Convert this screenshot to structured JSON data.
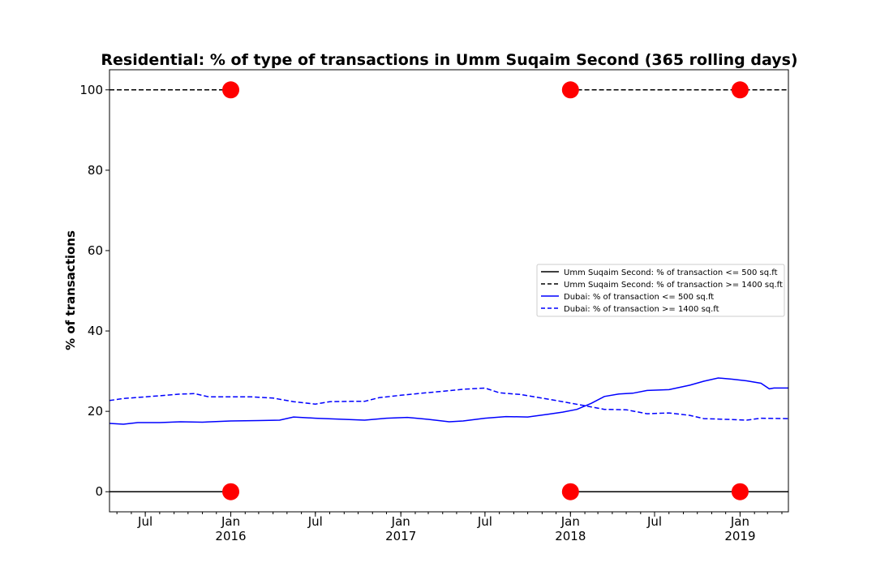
{
  "chart_data": {
    "type": "line",
    "title": "Residential: % of type of transactions in Umm Suqaim Second (365 rolling days)",
    "xlabel": "",
    "ylabel": "% of transactions",
    "xlim": [
      "2015-04-15",
      "2019-04-15"
    ],
    "ylim": [
      -5,
      105
    ],
    "yticks": [
      0,
      20,
      40,
      60,
      80,
      100
    ],
    "xticks": [
      {
        "date": "2015-07-01",
        "label": "Jul",
        "sublabel": ""
      },
      {
        "date": "2016-01-01",
        "label": "Jan",
        "sublabel": "2016"
      },
      {
        "date": "2016-07-01",
        "label": "Jul",
        "sublabel": ""
      },
      {
        "date": "2017-01-01",
        "label": "Jan",
        "sublabel": "2017"
      },
      {
        "date": "2017-07-01",
        "label": "Jul",
        "sublabel": ""
      },
      {
        "date": "2018-01-01",
        "label": "Jan",
        "sublabel": "2018"
      },
      {
        "date": "2018-07-01",
        "label": "Jul",
        "sublabel": ""
      },
      {
        "date": "2019-01-01",
        "label": "Jan",
        "sublabel": "2019"
      }
    ],
    "legend_position": "center-right",
    "grid": false,
    "series": [
      {
        "name": "Umm Suqaim Second: % of transaction <= 500 sq.ft",
        "color": "#000000",
        "dashed": false,
        "segments": [
          [
            [
              "2015-04-15",
              0
            ],
            [
              "2016-01-01",
              0
            ]
          ],
          [
            [
              "2017-12-15",
              0
            ],
            [
              "2019-04-15",
              0
            ]
          ]
        ]
      },
      {
        "name": "Umm Suqaim Second: % of transaction >= 1400 sq.ft",
        "color": "#000000",
        "dashed": true,
        "segments": [
          [
            [
              "2015-04-15",
              100
            ],
            [
              "2016-01-01",
              100
            ]
          ],
          [
            [
              "2017-12-15",
              100
            ],
            [
              "2019-04-15",
              100
            ]
          ]
        ]
      },
      {
        "name": "Dubai: % of transaction <= 500 sq.ft",
        "color": "#0000ff",
        "dashed": false,
        "points": [
          [
            "2015-04-15",
            17.0
          ],
          [
            "2015-05-15",
            16.8
          ],
          [
            "2015-06-15",
            17.2
          ],
          [
            "2015-08-01",
            17.2
          ],
          [
            "2015-09-15",
            17.4
          ],
          [
            "2015-11-01",
            17.3
          ],
          [
            "2016-01-01",
            17.6
          ],
          [
            "2016-03-01",
            17.7
          ],
          [
            "2016-04-15",
            17.8
          ],
          [
            "2016-05-15",
            18.6
          ],
          [
            "2016-07-01",
            18.3
          ],
          [
            "2016-09-01",
            18.0
          ],
          [
            "2016-10-15",
            17.8
          ],
          [
            "2016-12-01",
            18.3
          ],
          [
            "2017-01-15",
            18.5
          ],
          [
            "2017-03-01",
            18.0
          ],
          [
            "2017-04-15",
            17.4
          ],
          [
            "2017-05-15",
            17.6
          ],
          [
            "2017-07-01",
            18.3
          ],
          [
            "2017-08-15",
            18.7
          ],
          [
            "2017-10-01",
            18.6
          ],
          [
            "2017-11-15",
            19.3
          ],
          [
            "2017-12-15",
            19.8
          ],
          [
            "2018-01-15",
            20.5
          ],
          [
            "2018-02-15",
            22.0
          ],
          [
            "2018-03-15",
            23.7
          ],
          [
            "2018-04-15",
            24.3
          ],
          [
            "2018-05-15",
            24.5
          ],
          [
            "2018-06-15",
            25.2
          ],
          [
            "2018-08-01",
            25.4
          ],
          [
            "2018-09-15",
            26.5
          ],
          [
            "2018-10-15",
            27.5
          ],
          [
            "2018-11-15",
            28.3
          ],
          [
            "2018-12-15",
            28.0
          ],
          [
            "2019-01-15",
            27.6
          ],
          [
            "2019-02-15",
            27.0
          ],
          [
            "2019-03-05",
            25.6
          ],
          [
            "2019-03-15",
            25.8
          ],
          [
            "2019-04-15",
            25.8
          ]
        ]
      },
      {
        "name": "Dubai: % of transaction >= 1400 sq.ft",
        "color": "#0000ff",
        "dashed": true,
        "points": [
          [
            "2015-04-15",
            22.7
          ],
          [
            "2015-05-15",
            23.2
          ],
          [
            "2015-07-01",
            23.6
          ],
          [
            "2015-08-15",
            24.0
          ],
          [
            "2015-09-15",
            24.3
          ],
          [
            "2015-10-15",
            24.4
          ],
          [
            "2015-11-15",
            23.6
          ],
          [
            "2016-01-01",
            23.6
          ],
          [
            "2016-02-15",
            23.6
          ],
          [
            "2016-04-01",
            23.3
          ],
          [
            "2016-05-15",
            22.4
          ],
          [
            "2016-07-01",
            21.8
          ],
          [
            "2016-08-01",
            22.4
          ],
          [
            "2016-09-15",
            22.5
          ],
          [
            "2016-10-15",
            22.5
          ],
          [
            "2016-11-15",
            23.4
          ],
          [
            "2017-01-01",
            24.0
          ],
          [
            "2017-02-15",
            24.5
          ],
          [
            "2017-04-01",
            25.0
          ],
          [
            "2017-05-15",
            25.5
          ],
          [
            "2017-07-01",
            25.8
          ],
          [
            "2017-08-01",
            24.6
          ],
          [
            "2017-09-15",
            24.2
          ],
          [
            "2017-11-01",
            23.3
          ],
          [
            "2017-12-15",
            22.4
          ],
          [
            "2018-02-01",
            21.4
          ],
          [
            "2018-03-15",
            20.5
          ],
          [
            "2018-05-01",
            20.4
          ],
          [
            "2018-06-15",
            19.4
          ],
          [
            "2018-08-01",
            19.6
          ],
          [
            "2018-09-15",
            19.0
          ],
          [
            "2018-10-15",
            18.2
          ],
          [
            "2018-12-01",
            18.0
          ],
          [
            "2019-01-15",
            17.8
          ],
          [
            "2019-02-15",
            18.3
          ],
          [
            "2019-04-15",
            18.2
          ]
        ]
      }
    ],
    "markers": {
      "color": "#ff0000",
      "points": [
        [
          "2016-01-01",
          100
        ],
        [
          "2016-01-01",
          0
        ],
        [
          "2018-01-01",
          100
        ],
        [
          "2018-01-01",
          0
        ],
        [
          "2019-01-01",
          100
        ],
        [
          "2019-01-01",
          0
        ]
      ]
    }
  }
}
